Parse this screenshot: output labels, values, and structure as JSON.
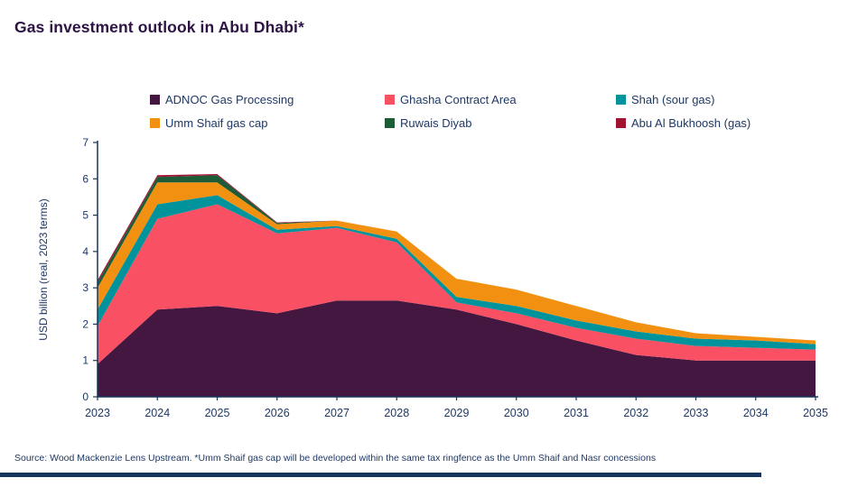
{
  "title": "Gas investment outlook in Abu Dhabi*",
  "source_note": "Source: Wood Mackenzie Lens Upstream.  *Umm Shaif gas cap will be developed within the same tax ringfence as the Umm Shaif and Nasr concessions",
  "colors": {
    "title_text": "#2d1445",
    "body_text": "#1f3864",
    "axis": "#16355c",
    "footer_bar": "#16355c"
  },
  "chart_data": {
    "type": "area",
    "stacked": true,
    "title": "Gas investment outlook in Abu Dhabi*",
    "xlabel": "",
    "ylabel": "USD billion (real, 2023 terms)",
    "ylim": [
      0,
      7
    ],
    "yticks": [
      0,
      1,
      2,
      3,
      4,
      5,
      6,
      7
    ],
    "grid": false,
    "legend_position": "top",
    "x": [
      2023,
      2024,
      2025,
      2026,
      2027,
      2028,
      2029,
      2030,
      2031,
      2032,
      2033,
      2034,
      2035
    ],
    "series": [
      {
        "name": "ADNOC Gas Processing",
        "color": "#441740",
        "values": [
          0.9,
          2.4,
          2.5,
          2.3,
          2.65,
          2.65,
          2.4,
          2.0,
          1.55,
          1.15,
          1.0,
          1.0,
          1.0
        ]
      },
      {
        "name": "Ghasha Contract Area",
        "color": "#fa5064",
        "values": [
          1.05,
          2.5,
          2.8,
          2.2,
          2.0,
          1.6,
          0.2,
          0.3,
          0.35,
          0.45,
          0.4,
          0.35,
          0.3
        ]
      },
      {
        "name": "Shah (sour gas)",
        "color": "#00939b",
        "values": [
          0.45,
          0.4,
          0.25,
          0.1,
          0.05,
          0.1,
          0.15,
          0.2,
          0.2,
          0.2,
          0.2,
          0.2,
          0.15
        ]
      },
      {
        "name": "Umm Shaif gas cap",
        "color": "#f29111",
        "values": [
          0.6,
          0.6,
          0.35,
          0.15,
          0.15,
          0.2,
          0.5,
          0.45,
          0.4,
          0.25,
          0.15,
          0.1,
          0.1
        ]
      },
      {
        "name": "Ruwais Diyab",
        "color": "#1e5c38",
        "values": [
          0.15,
          0.15,
          0.2,
          0.03,
          0.0,
          0.0,
          0.0,
          0.0,
          0.0,
          0.0,
          0.0,
          0.0,
          0.0
        ]
      },
      {
        "name": "Abu Al Bukhoosh (gas)",
        "color": "#a01333",
        "values": [
          0.06,
          0.05,
          0.03,
          0.02,
          0.0,
          0.0,
          0.0,
          0.0,
          0.0,
          0.0,
          0.0,
          0.0,
          0.0
        ]
      }
    ]
  }
}
